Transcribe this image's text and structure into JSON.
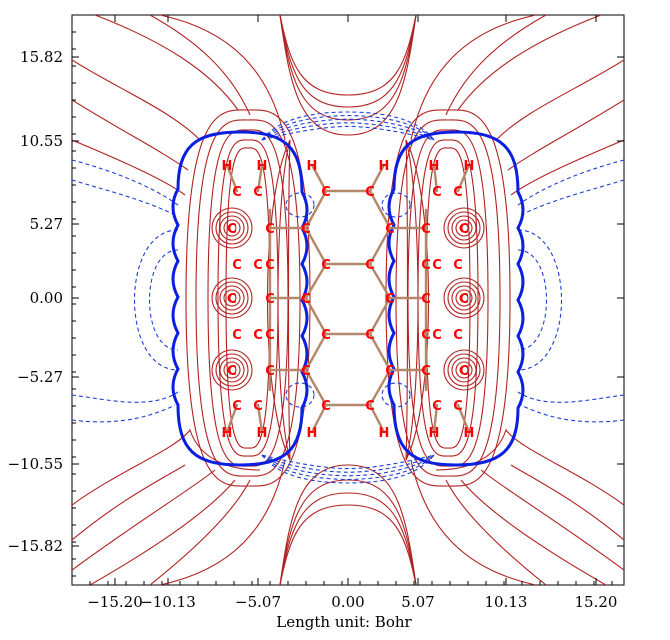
{
  "plot": {
    "axis_caption": "Length unit: Bohr",
    "x_ticks": [
      "−15.20",
      "−10.13",
      "−5.07",
      "0.00",
      "5.07",
      "10.13",
      "15.20"
    ],
    "y_ticks": [
      "15.82",
      "10.55",
      "5.27",
      "0.00",
      "−5.27",
      "−10.55",
      "−15.82"
    ]
  },
  "colors": {
    "positive_contour": "#b22222",
    "negative_contour": "#1f3fd6",
    "zero_contour": "#0a1fe0",
    "bond": "#b5876a",
    "atom_label": "#ff0000"
  },
  "atoms": {
    "carbon_label": "C",
    "hydrogen_label": "H"
  }
}
